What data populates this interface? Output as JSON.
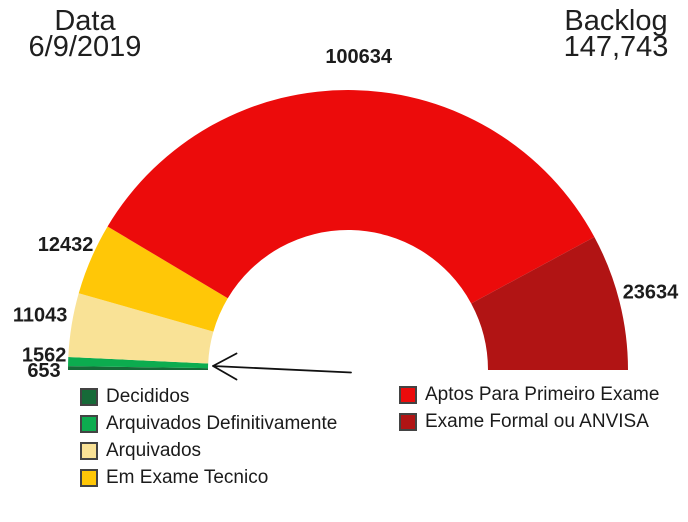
{
  "header": {
    "date_label": "Data",
    "date_value": "6/9/2019",
    "backlog_label": "Backlog",
    "backlog_value": "147,743"
  },
  "chart_data": {
    "type": "pie",
    "subtype": "half_donut",
    "start_angle_deg": 180,
    "end_angle_deg": 0,
    "inner_radius_ratio": 0.5,
    "show_value_labels": true,
    "legend_position": "bottom-two-columns",
    "slices": [
      {
        "label": "Decididos",
        "value": 653,
        "color": "#166A38"
      },
      {
        "label": "Arquivados Definitivamente",
        "value": 1562,
        "color": "#0CAC4F"
      },
      {
        "label": "Arquivados",
        "value": 11043,
        "color": "#F9E296"
      },
      {
        "label": "Em Exame Tecnico",
        "value": 12432,
        "color": "#FFC707"
      },
      {
        "label": "Aptos Para Primeiro Exame",
        "value": 100634,
        "color": "#EC0B0B"
      },
      {
        "label": "Exame Formal ou ANVISA",
        "value": 23634,
        "color": "#B11414"
      }
    ]
  }
}
